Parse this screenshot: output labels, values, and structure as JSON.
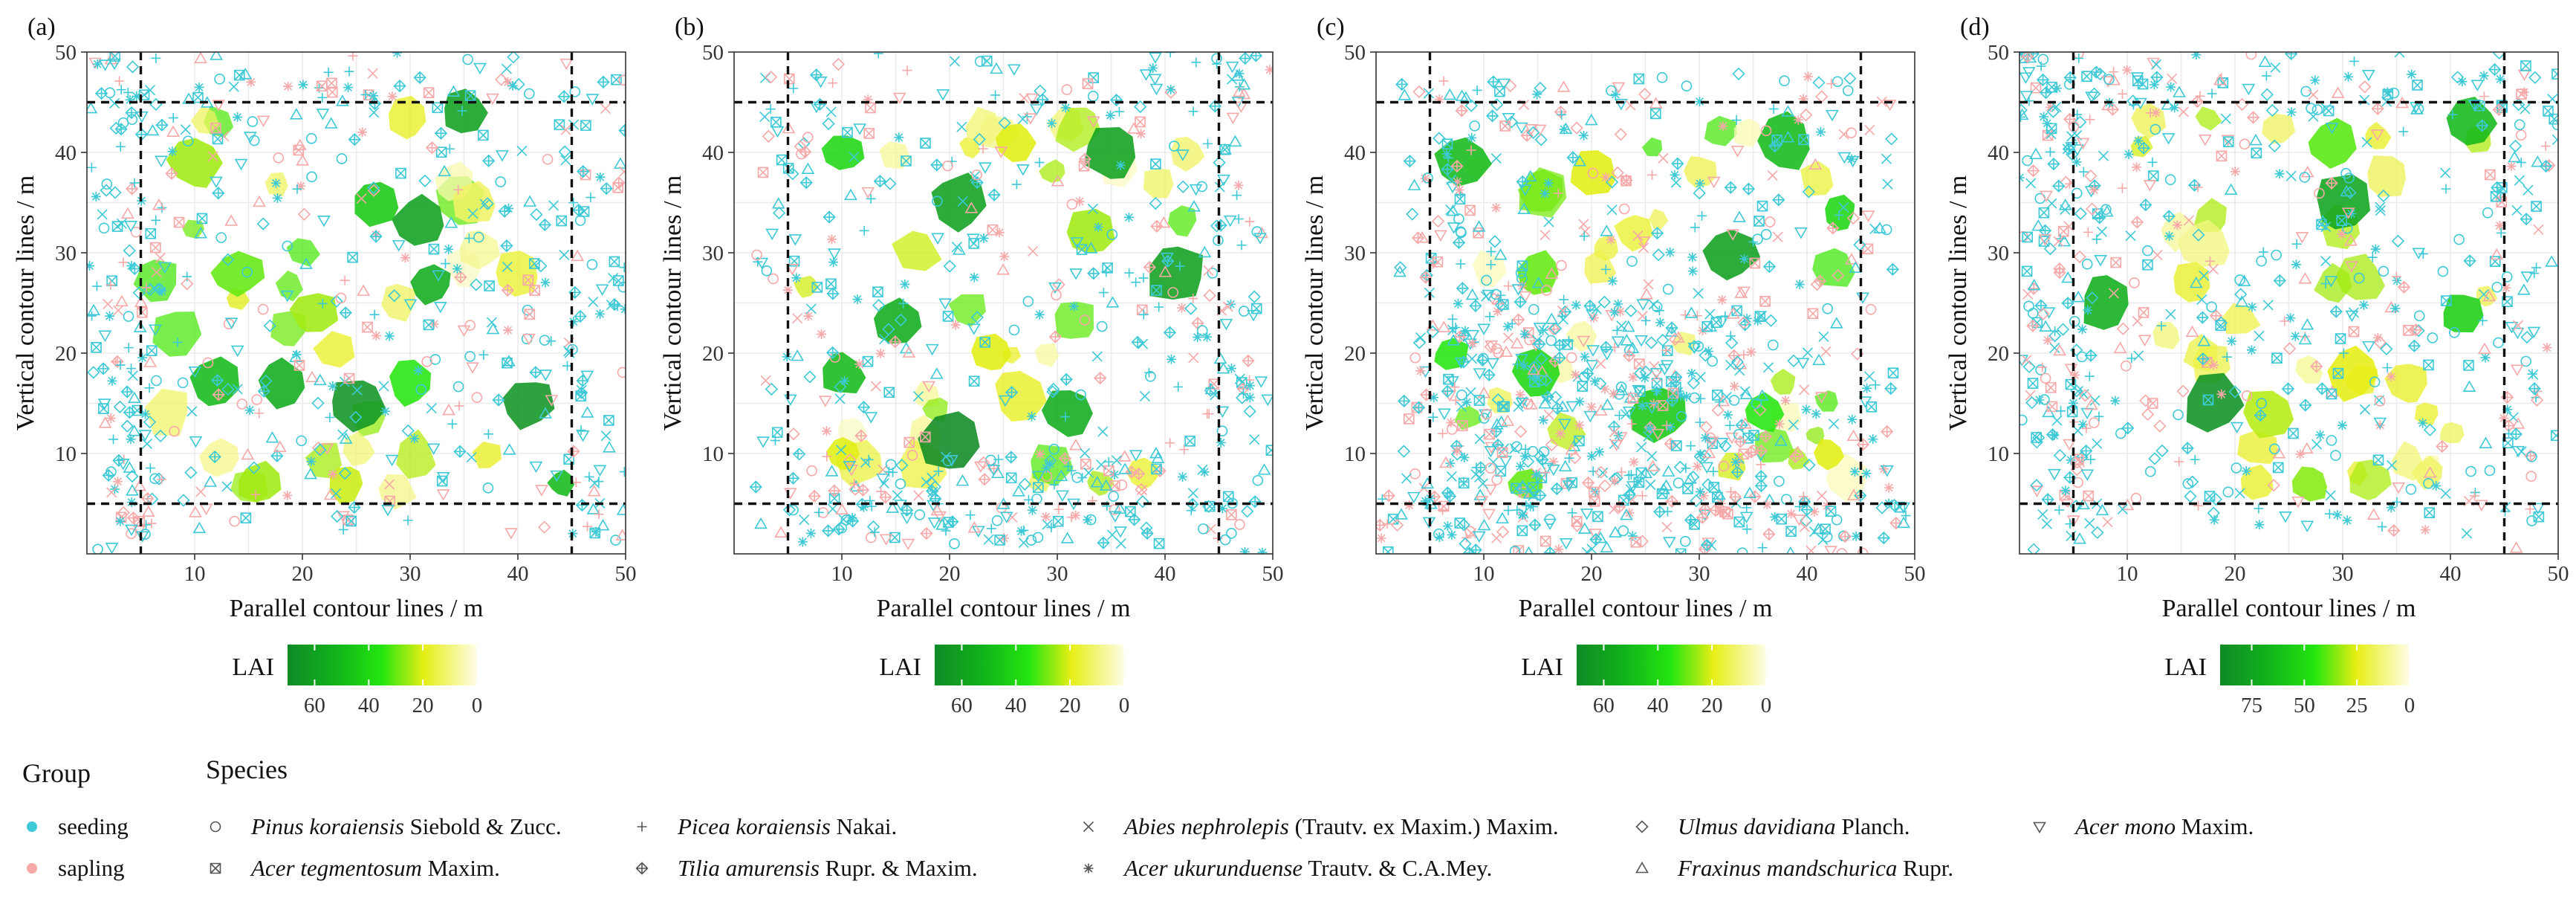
{
  "figure": {
    "panels": [
      {
        "label": "(a)",
        "cbar_ticks": [
          60,
          40,
          20,
          0
        ],
        "cbar_max": 70
      },
      {
        "label": "(b)",
        "cbar_ticks": [
          60,
          40,
          20,
          0
        ],
        "cbar_max": 70
      },
      {
        "label": "(c)",
        "cbar_ticks": [
          60,
          40,
          20,
          0
        ],
        "cbar_max": 70
      },
      {
        "label": "(d)",
        "cbar_ticks": [
          75,
          50,
          25,
          0
        ],
        "cbar_max": 90
      }
    ],
    "xlabel": "Parallel contour lines / m",
    "ylabel": "Vertical contour lines / m",
    "colorbar_label": "LAI",
    "legend": {
      "group_title": "Group",
      "species_title": "Species",
      "groups": [
        {
          "name": "seeding",
          "color": "#3ec9d6"
        },
        {
          "name": "sapling",
          "color": "#f7a8a8"
        }
      ],
      "species": [
        {
          "italic": "Pinus koraiensis",
          "authority": " Siebold & Zucc.",
          "icon": "circle-icon"
        },
        {
          "italic": "Picea koraiensis",
          "authority": " Nakai.",
          "icon": "plus-icon"
        },
        {
          "italic": "Abies nephrolepis",
          "authority": " (Trautv. ex Maxim.) Maxim.",
          "icon": "cross-icon"
        },
        {
          "italic": "Ulmus davidiana",
          "authority": " Planch.",
          "icon": "diamond-icon"
        },
        {
          "italic": "Acer mono",
          "authority": " Maxim.",
          "icon": "triangle-down-icon"
        },
        {
          "italic": "Acer tegmentosum",
          "authority": " Maxim.",
          "icon": "square-cross-icon"
        },
        {
          "italic": "Tilia amurensis",
          "authority": " Rupr. & Maxim.",
          "icon": "diamond-plus-icon"
        },
        {
          "italic": "Acer ukurunduense",
          "authority": " Trautv. & C.A.Mey.",
          "icon": "asterisk-icon"
        },
        {
          "italic": "Fraxinus mandschurica",
          "authority": " Rupr.",
          "icon": "triangle-up-icon"
        }
      ]
    }
  },
  "chart_data": [
    {
      "type": "scatter",
      "title": "(a)",
      "xlabel": "Parallel contour lines / m",
      "ylabel": "Vertical contour lines / m",
      "xlim": [
        0,
        50
      ],
      "ylim": [
        0,
        50
      ],
      "xticks": [
        10,
        20,
        30,
        40,
        50
      ],
      "yticks": [
        10,
        20,
        30,
        40,
        50
      ],
      "core_area_lines": {
        "x": [
          5,
          45
        ],
        "y": [
          5,
          45
        ]
      },
      "canopy_LAI_patches": [
        {
          "x": 18,
          "y": 17,
          "r": 2.2,
          "lai": 55
        },
        {
          "x": 25,
          "y": 15,
          "r": 2.6,
          "lai": 65
        },
        {
          "x": 31,
          "y": 33,
          "r": 2.5,
          "lai": 60
        },
        {
          "x": 41,
          "y": 15,
          "r": 2.4,
          "lai": 65
        },
        {
          "x": 35,
          "y": 44,
          "r": 2.1,
          "lai": 60
        },
        {
          "x": 12,
          "y": 17,
          "r": 2.3,
          "lai": 50
        },
        {
          "x": 27,
          "y": 35,
          "r": 2.2,
          "lai": 45
        },
        {
          "x": 32,
          "y": 27,
          "r": 2.0,
          "lai": 55
        },
        {
          "x": 10,
          "y": 39,
          "r": 2.4,
          "lai": 25
        },
        {
          "x": 14,
          "y": 28,
          "r": 2.3,
          "lai": 30
        },
        {
          "x": 40,
          "y": 28,
          "r": 2.2,
          "lai": 15
        },
        {
          "x": 21,
          "y": 24,
          "r": 2.2,
          "lai": 25
        },
        {
          "x": 30,
          "y": 17,
          "r": 2.1,
          "lai": 35
        },
        {
          "x": 36,
          "y": 35,
          "r": 2.0,
          "lai": 12
        },
        {
          "x": 16,
          "y": 7,
          "r": 2.0,
          "lai": 25
        },
        {
          "x": 24,
          "y": 7,
          "r": 1.8,
          "lai": 22
        },
        {
          "x": 44,
          "y": 7,
          "r": 1.2,
          "lai": 50
        }
      ]
    },
    {
      "type": "scatter",
      "title": "(b)",
      "xlabel": "Parallel contour lines / m",
      "ylabel": "Vertical contour lines / m",
      "xlim": [
        0,
        50
      ],
      "ylim": [
        0,
        50
      ],
      "xticks": [
        10,
        20,
        30,
        40,
        50
      ],
      "yticks": [
        10,
        20,
        30,
        40,
        50
      ],
      "core_area_lines": {
        "x": [
          5,
          45
        ],
        "y": [
          5,
          45
        ]
      },
      "canopy_LAI_patches": [
        {
          "x": 20,
          "y": 11,
          "r": 2.8,
          "lai": 70
        },
        {
          "x": 21,
          "y": 35,
          "r": 2.6,
          "lai": 60
        },
        {
          "x": 35,
          "y": 40,
          "r": 2.6,
          "lai": 60
        },
        {
          "x": 41,
          "y": 28,
          "r": 2.9,
          "lai": 60
        },
        {
          "x": 15,
          "y": 23,
          "r": 2.4,
          "lai": 55
        },
        {
          "x": 31,
          "y": 14,
          "r": 2.4,
          "lai": 55
        },
        {
          "x": 10,
          "y": 18,
          "r": 2.1,
          "lai": 50
        },
        {
          "x": 10,
          "y": 40,
          "r": 2.0,
          "lai": 40
        },
        {
          "x": 26,
          "y": 41,
          "r": 2.0,
          "lai": 20
        },
        {
          "x": 24,
          "y": 20,
          "r": 1.9,
          "lai": 20
        },
        {
          "x": 33,
          "y": 32,
          "r": 2.2,
          "lai": 25
        },
        {
          "x": 10,
          "y": 10,
          "r": 1.6,
          "lai": 20
        },
        {
          "x": 38,
          "y": 8,
          "r": 1.6,
          "lai": 15
        },
        {
          "x": 42,
          "y": 40,
          "r": 1.6,
          "lai": 10
        }
      ]
    },
    {
      "type": "scatter",
      "title": "(c)",
      "xlabel": "Parallel contour lines / m",
      "ylabel": "Vertical contour lines / m",
      "xlim": [
        0,
        50
      ],
      "ylim": [
        0,
        50
      ],
      "xticks": [
        10,
        20,
        30,
        40,
        50
      ],
      "yticks": [
        10,
        20,
        30,
        40,
        50
      ],
      "core_area_lines": {
        "x": [
          5,
          45
        ],
        "y": [
          5,
          45
        ]
      },
      "canopy_LAI_patches": [
        {
          "x": 8,
          "y": 39,
          "r": 2.5,
          "lai": 50
        },
        {
          "x": 33,
          "y": 30,
          "r": 2.5,
          "lai": 60
        },
        {
          "x": 26,
          "y": 14,
          "r": 2.8,
          "lai": 45
        },
        {
          "x": 38,
          "y": 41,
          "r": 2.6,
          "lai": 50
        },
        {
          "x": 15,
          "y": 18,
          "r": 2.4,
          "lai": 40
        },
        {
          "x": 15,
          "y": 28,
          "r": 2.0,
          "lai": 30
        },
        {
          "x": 20,
          "y": 38,
          "r": 2.2,
          "lai": 20
        },
        {
          "x": 36,
          "y": 14,
          "r": 1.8,
          "lai": 35
        },
        {
          "x": 43,
          "y": 34,
          "r": 1.6,
          "lai": 40
        },
        {
          "x": 7,
          "y": 20,
          "r": 1.6,
          "lai": 35
        },
        {
          "x": 24,
          "y": 32,
          "r": 1.8,
          "lai": 15
        },
        {
          "x": 14,
          "y": 7,
          "r": 1.6,
          "lai": 30
        },
        {
          "x": 30,
          "y": 38,
          "r": 1.6,
          "lai": 12
        },
        {
          "x": 42,
          "y": 10,
          "r": 1.5,
          "lai": 20
        }
      ]
    },
    {
      "type": "scatter",
      "title": "(d)",
      "xlabel": "Parallel contour lines / m",
      "ylabel": "Vertical contour lines / m",
      "xlim": [
        0,
        50
      ],
      "ylim": [
        0,
        50
      ],
      "xticks": [
        10,
        20,
        30,
        40,
        50
      ],
      "yticks": [
        10,
        20,
        30,
        40,
        50
      ],
      "core_area_lines": {
        "x": [
          5,
          45
        ],
        "y": [
          5,
          45
        ]
      },
      "canopy_LAI_patches": [
        {
          "x": 18,
          "y": 15,
          "r": 2.8,
          "lai": 85
        },
        {
          "x": 30,
          "y": 35,
          "r": 2.9,
          "lai": 75
        },
        {
          "x": 8,
          "y": 25,
          "r": 2.5,
          "lai": 70
        },
        {
          "x": 42,
          "y": 43,
          "r": 2.3,
          "lai": 65
        },
        {
          "x": 41,
          "y": 24,
          "r": 2.0,
          "lai": 55
        },
        {
          "x": 29,
          "y": 41,
          "r": 2.2,
          "lai": 40
        },
        {
          "x": 23,
          "y": 14,
          "r": 2.4,
          "lai": 30
        },
        {
          "x": 31,
          "y": 18,
          "r": 2.6,
          "lai": 25
        },
        {
          "x": 36,
          "y": 17,
          "r": 2.0,
          "lai": 20
        },
        {
          "x": 16,
          "y": 27,
          "r": 1.9,
          "lai": 20
        },
        {
          "x": 12,
          "y": 43,
          "r": 1.6,
          "lai": 15
        },
        {
          "x": 22,
          "y": 7,
          "r": 1.7,
          "lai": 20
        },
        {
          "x": 38,
          "y": 8,
          "r": 1.5,
          "lai": 15
        },
        {
          "x": 27,
          "y": 7,
          "r": 1.8,
          "lai": 35
        }
      ]
    }
  ]
}
